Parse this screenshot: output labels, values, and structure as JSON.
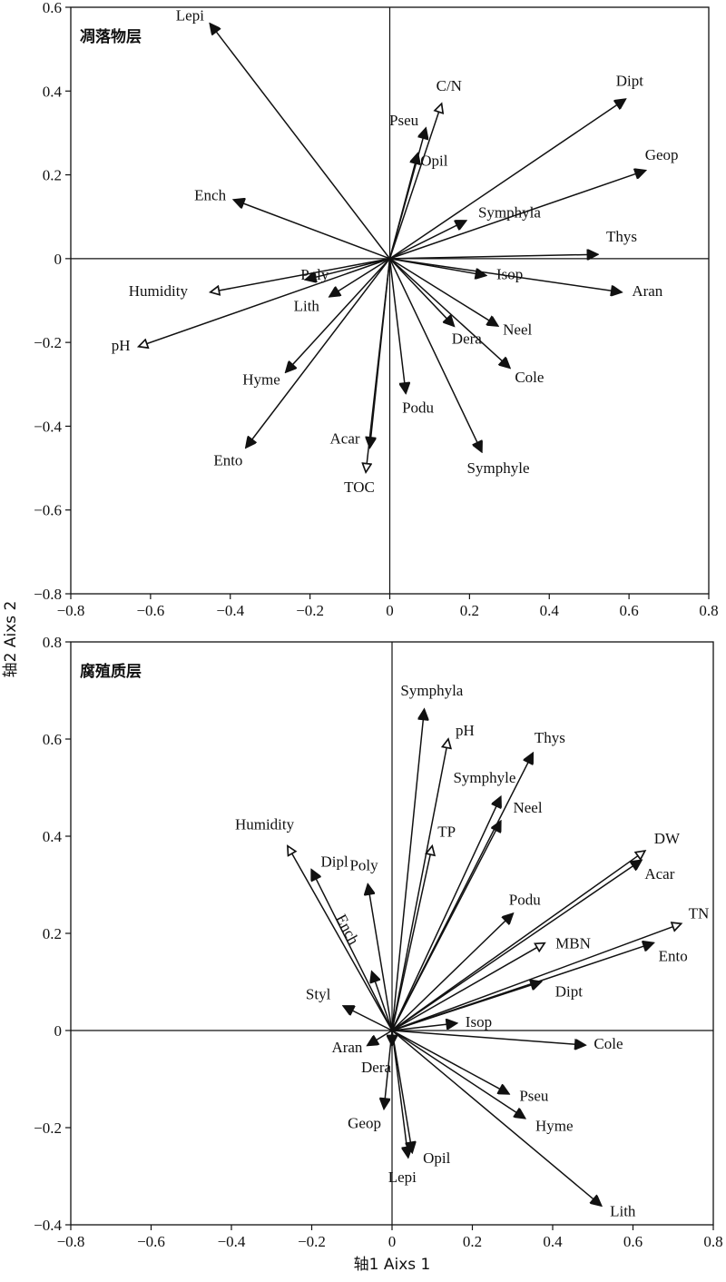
{
  "axis_titles": {
    "x": "轴1 Aixs 1",
    "y": "轴2 Aixs 2"
  },
  "chart_data": [
    {
      "type": "scatter",
      "subtype": "ordination-biplot",
      "title": "凋落物层",
      "xlim": [
        -0.8,
        0.8
      ],
      "ylim": [
        -0.8,
        0.6
      ],
      "xticks": [
        "-0.8",
        "-0.6",
        "-0.4",
        "-0.2",
        "0",
        "0.2",
        "0.4",
        "0.6",
        "0.8"
      ],
      "yticks": [
        "-0.8",
        "-0.6",
        "-0.4",
        "-0.2",
        "0",
        "0.2",
        "0.4",
        "0.6"
      ],
      "grid": false,
      "series": [
        {
          "name": "",
          "arrow": "solid",
          "points": [
            {
              "label": "Lepi",
              "x": -0.45,
              "y": 0.56
            },
            {
              "label": "Dipt",
              "x": 0.59,
              "y": 0.38
            },
            {
              "label": "Geop",
              "x": 0.64,
              "y": 0.21
            },
            {
              "label": "Pseu",
              "x": 0.09,
              "y": 0.31
            },
            {
              "label": "Opil",
              "x": 0.07,
              "y": 0.25
            },
            {
              "label": "Symphyla",
              "x": 0.19,
              "y": 0.09
            },
            {
              "label": "Ench",
              "x": -0.39,
              "y": 0.14
            },
            {
              "label": "Thys",
              "x": 0.52,
              "y": 0.01
            },
            {
              "label": "Aran",
              "x": 0.58,
              "y": -0.08
            },
            {
              "label": "Isop",
              "x": 0.24,
              "y": -0.04
            },
            {
              "label": "Poly",
              "x": -0.21,
              "y": -0.05
            },
            {
              "label": "Lith",
              "x": -0.15,
              "y": -0.09
            },
            {
              "label": "Neel",
              "x": 0.27,
              "y": -0.16
            },
            {
              "label": "Dera",
              "x": 0.16,
              "y": -0.16
            },
            {
              "label": "Cole",
              "x": 0.3,
              "y": -0.26
            },
            {
              "label": "Hyme",
              "x": -0.26,
              "y": -0.27
            },
            {
              "label": "Podu",
              "x": 0.04,
              "y": -0.32
            },
            {
              "label": "Ento",
              "x": -0.36,
              "y": -0.45
            },
            {
              "label": "Acar",
              "x": -0.05,
              "y": -0.45
            },
            {
              "label": "Symphyle",
              "x": 0.23,
              "y": -0.46
            }
          ]
        },
        {
          "name": "",
          "arrow": "open",
          "points": [
            {
              "label": "C/N",
              "x": 0.13,
              "y": 0.37
            },
            {
              "label": "Humidity",
              "x": -0.45,
              "y": -0.08
            },
            {
              "label": "pH",
              "x": -0.63,
              "y": -0.21
            },
            {
              "label": "TOC",
              "x": -0.06,
              "y": -0.51
            }
          ]
        }
      ]
    },
    {
      "type": "scatter",
      "subtype": "ordination-biplot",
      "title": "腐殖质层",
      "xlim": [
        -0.8,
        0.8
      ],
      "ylim": [
        -0.4,
        0.8
      ],
      "xticks": [
        "-0.8",
        "-0.6",
        "-0.4",
        "-0.2",
        "0",
        "0.2",
        "0.4",
        "0.6",
        "0.8"
      ],
      "yticks": [
        "-0.4",
        "-0.2",
        "0",
        "0.2",
        "0.4",
        "0.6",
        "0.8"
      ],
      "grid": false,
      "series": [
        {
          "name": "",
          "arrow": "solid",
          "points": [
            {
              "label": "Symphyla",
              "x": 0.08,
              "y": 0.66
            },
            {
              "label": "Thys",
              "x": 0.35,
              "y": 0.57
            },
            {
              "label": "Symphyle",
              "x": 0.27,
              "y": 0.48
            },
            {
              "label": "Neel",
              "x": 0.27,
              "y": 0.43
            },
            {
              "label": "Acar",
              "x": 0.62,
              "y": 0.35
            },
            {
              "label": "Dipl",
              "x": -0.2,
              "y": 0.33
            },
            {
              "label": "Poly",
              "x": -0.06,
              "y": 0.3
            },
            {
              "label": "Podu",
              "x": 0.3,
              "y": 0.24
            },
            {
              "label": "Ento",
              "x": 0.65,
              "y": 0.18
            },
            {
              "label": "Ench",
              "x": -0.05,
              "y": 0.12
            },
            {
              "label": "Dipt",
              "x": 0.37,
              "y": 0.1
            },
            {
              "label": "Styl",
              "x": -0.12,
              "y": 0.05
            },
            {
              "label": "Isop",
              "x": 0.16,
              "y": 0.015
            },
            {
              "label": "Aran",
              "x": -0.06,
              "y": -0.03
            },
            {
              "label": "Dera",
              "x": 0.0,
              "y": -0.03
            },
            {
              "label": "Cole",
              "x": 0.48,
              "y": -0.03
            },
            {
              "label": "Pseu",
              "x": 0.29,
              "y": -0.13
            },
            {
              "label": "Hyme",
              "x": 0.33,
              "y": -0.18
            },
            {
              "label": "Geop",
              "x": -0.02,
              "y": -0.16
            },
            {
              "label": "Opil",
              "x": 0.05,
              "y": -0.25
            },
            {
              "label": "Lepi",
              "x": 0.04,
              "y": -0.26
            },
            {
              "label": "Lith",
              "x": 0.52,
              "y": -0.36
            }
          ]
        },
        {
          "name": "",
          "arrow": "open",
          "points": [
            {
              "label": "pH",
              "x": 0.14,
              "y": 0.6
            },
            {
              "label": "TP",
              "x": 0.1,
              "y": 0.38
            },
            {
              "label": "Humidity",
              "x": -0.26,
              "y": 0.38
            },
            {
              "label": "DW",
              "x": 0.63,
              "y": 0.37
            },
            {
              "label": "TN",
              "x": 0.72,
              "y": 0.22
            },
            {
              "label": "MBN",
              "x": 0.38,
              "y": 0.18
            }
          ]
        }
      ]
    }
  ]
}
